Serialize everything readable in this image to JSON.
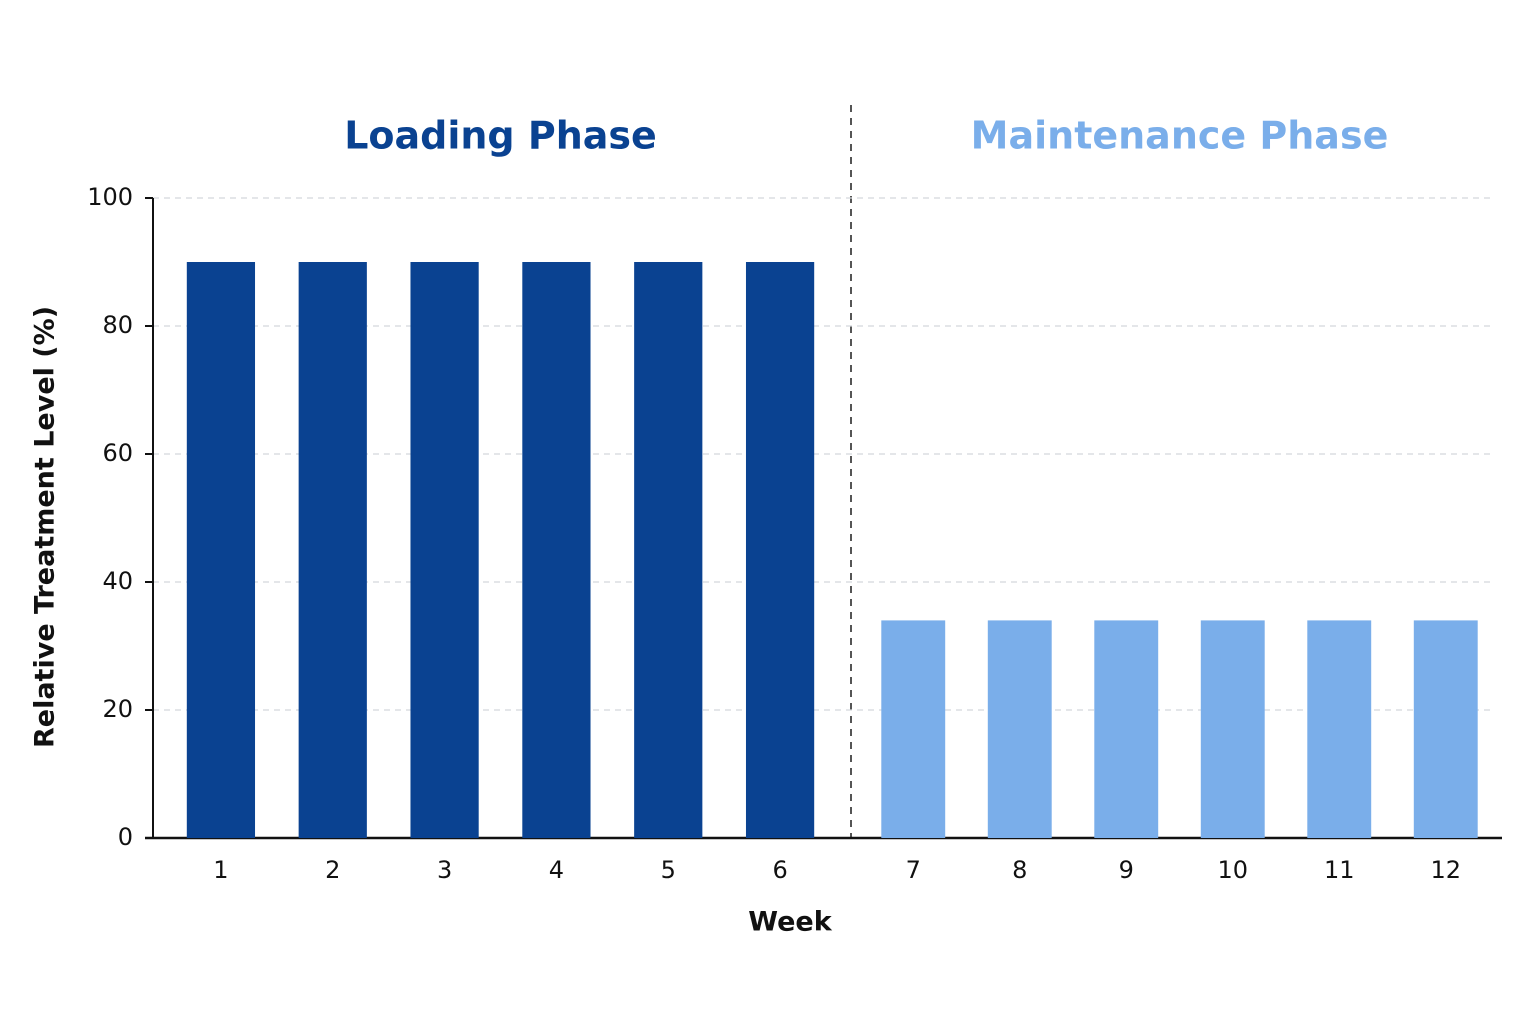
{
  "chart_data": {
    "type": "bar",
    "x_label": "Week",
    "y_label": "Relative Treatment Level (%)",
    "categories": [
      "1",
      "2",
      "3",
      "4",
      "5",
      "6",
      "7",
      "8",
      "9",
      "10",
      "11",
      "12"
    ],
    "series": [
      {
        "name": "Loading Phase",
        "color": "#0a4291",
        "values": [
          90,
          90,
          90,
          90,
          90,
          90,
          null,
          null,
          null,
          null,
          null,
          null
        ]
      },
      {
        "name": "Maintenance Phase",
        "color": "#7aaeea",
        "values": [
          null,
          null,
          null,
          null,
          null,
          null,
          34,
          34,
          34,
          34,
          34,
          34
        ]
      }
    ],
    "ylim": [
      0,
      100
    ],
    "yticks": [
      0,
      20,
      40,
      60,
      80,
      100
    ],
    "grid": true
  }
}
